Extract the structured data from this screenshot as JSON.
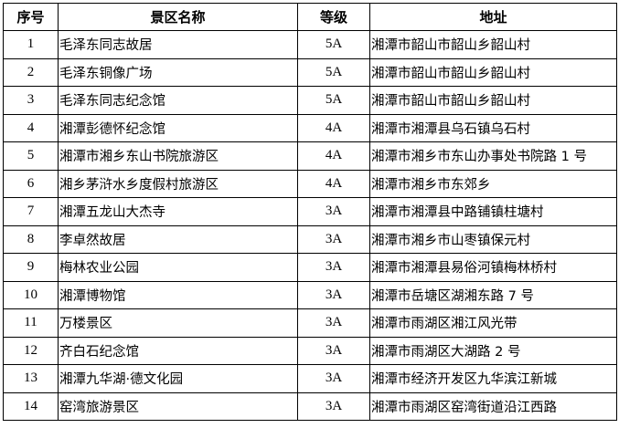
{
  "table": {
    "headers": [
      "序号",
      "景区名称",
      "等级",
      "地址"
    ],
    "rows": [
      {
        "no": "1",
        "name": "毛泽东同志故居",
        "grade": "5A",
        "address": "湘潭市韶山市韶山乡韶山村"
      },
      {
        "no": "2",
        "name": "毛泽东铜像广场",
        "grade": "5A",
        "address": "湘潭市韶山市韶山乡韶山村"
      },
      {
        "no": "3",
        "name": "毛泽东同志纪念馆",
        "grade": "5A",
        "address": "湘潭市韶山市韶山乡韶山村"
      },
      {
        "no": "4",
        "name": "湘潭彭德怀纪念馆",
        "grade": "4A",
        "address": "湘潭市湘潭县乌石镇乌石村"
      },
      {
        "no": "5",
        "name": "湘潭市湘乡东山书院旅游区",
        "grade": "4A",
        "address": "湘潭市湘乡市东山办事处书院路 1 号"
      },
      {
        "no": "6",
        "name": "湘乡茅浒水乡度假村旅游区",
        "grade": "4A",
        "address": "湘潭市湘乡市东郊乡"
      },
      {
        "no": "7",
        "name": "湘潭五龙山大杰寺",
        "grade": "3A",
        "address": "湘潭市湘潭县中路铺镇柱塘村"
      },
      {
        "no": "8",
        "name": "李卓然故居",
        "grade": "3A",
        "address": "湘潭市湘乡市山枣镇保元村"
      },
      {
        "no": "9",
        "name": "梅林农业公园",
        "grade": "3A",
        "address": "湘潭市湘潭县易俗河镇梅林桥村"
      },
      {
        "no": "10",
        "name": "湘潭博物馆",
        "grade": "3A",
        "address": "湘潭市岳塘区湖湘东路 7 号"
      },
      {
        "no": "11",
        "name": "万楼景区",
        "grade": "3A",
        "address": "湘潭市雨湖区湘江风光带"
      },
      {
        "no": "12",
        "name": "齐白石纪念馆",
        "grade": "3A",
        "address": "湘潭市雨湖区大湖路 2 号"
      },
      {
        "no": "13",
        "name": "湘潭九华湖·德文化园",
        "grade": "3A",
        "address": "湘潭市经济开发区九华滨江新城"
      },
      {
        "no": "14",
        "name": "窑湾旅游景区",
        "grade": "3A",
        "address": "湘潭市雨湖区窑湾街道沿江西路"
      }
    ]
  }
}
